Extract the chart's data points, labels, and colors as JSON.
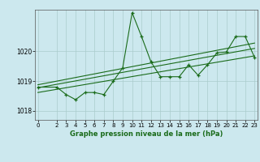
{
  "title": "Graphe pression niveau de la mer (hPa)",
  "bg_color": "#cce8ee",
  "grid_color": "#aacccc",
  "line_color": "#1a6b1a",
  "x_data": [
    0,
    2,
    3,
    4,
    5,
    6,
    7,
    8,
    9,
    10,
    11,
    12,
    13,
    14,
    15,
    16,
    17,
    18,
    19,
    20,
    21,
    22,
    23
  ],
  "y_data": [
    1018.8,
    1018.8,
    1018.55,
    1018.38,
    1018.62,
    1018.62,
    1018.55,
    1019.0,
    1019.45,
    1021.3,
    1020.5,
    1019.65,
    1019.15,
    1019.15,
    1019.15,
    1019.55,
    1019.2,
    1019.55,
    1019.95,
    1019.98,
    1020.5,
    1020.5,
    1019.8
  ],
  "trend1_x": [
    0,
    23
  ],
  "trend1_y": [
    1018.78,
    1020.1
  ],
  "trend2_x": [
    0,
    23
  ],
  "trend2_y": [
    1018.88,
    1020.28
  ],
  "trend3_x": [
    0,
    23
  ],
  "trend3_y": [
    1018.62,
    1019.85
  ],
  "ylim": [
    1017.7,
    1021.4
  ],
  "yticks": [
    1018,
    1019,
    1020
  ],
  "xlim": [
    -0.3,
    23.3
  ],
  "xticks": [
    0,
    2,
    3,
    4,
    5,
    6,
    7,
    8,
    9,
    10,
    11,
    12,
    13,
    14,
    15,
    16,
    17,
    18,
    19,
    20,
    21,
    22,
    23
  ]
}
